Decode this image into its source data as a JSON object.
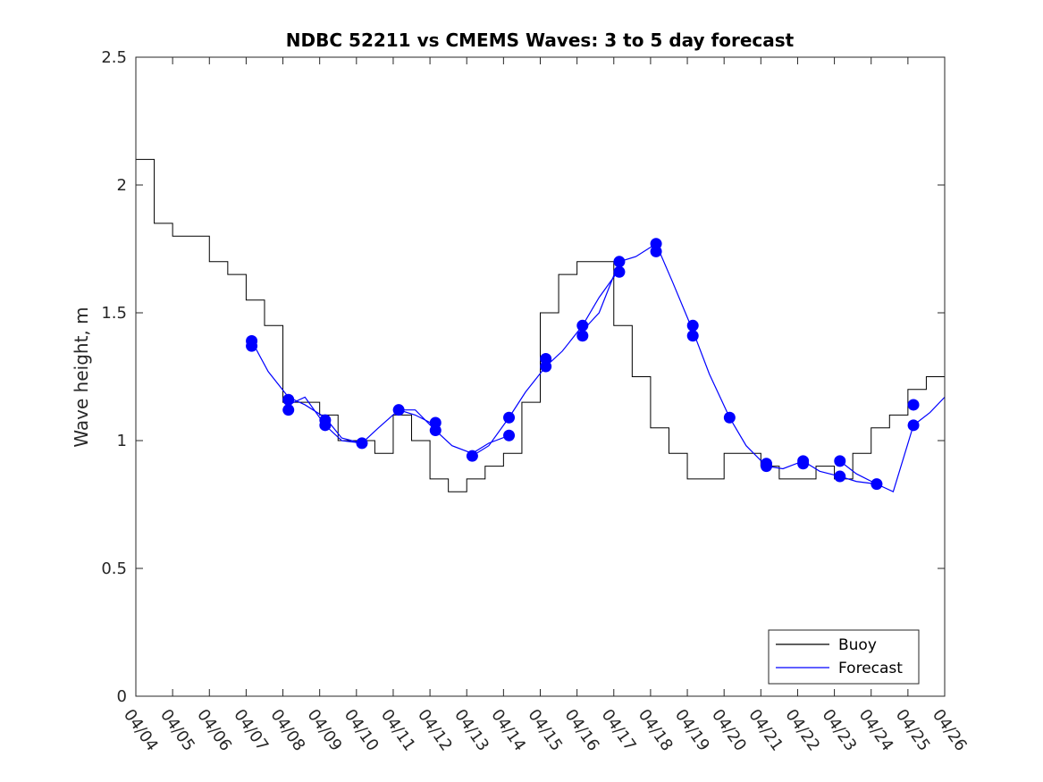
{
  "chart_data": {
    "type": "line",
    "title": "NDBC 52211 vs CMEMS Waves: 3 to 5 day forecast",
    "xlabel": "",
    "ylabel": "Wave height, m",
    "xlim": [
      0,
      22
    ],
    "ylim": [
      0,
      2.5
    ],
    "yticks": [
      0,
      0.5,
      1,
      1.5,
      2,
      2.5
    ],
    "ytick_labels": [
      "0",
      "0.5",
      "1",
      "1.5",
      "2",
      "2.5"
    ],
    "xtick_labels": [
      "04/04",
      "04/05",
      "04/06",
      "04/07",
      "04/08",
      "04/09",
      "04/10",
      "04/11",
      "04/12",
      "04/13",
      "04/14",
      "04/15",
      "04/16",
      "04/17",
      "04/18",
      "04/19",
      "04/20",
      "04/21",
      "04/22",
      "04/23",
      "04/24",
      "04/25",
      "04/26"
    ],
    "legend": {
      "position": "bottom-right",
      "entries": [
        "Buoy",
        "Forecast"
      ]
    },
    "colors": {
      "buoy": "#000000",
      "forecast": "#0000ff"
    },
    "series": [
      {
        "name": "Buoy",
        "x": [
          0,
          0.5,
          1,
          1.5,
          2,
          2.5,
          3,
          3.5,
          4,
          4.5,
          5,
          5.5,
          6,
          6.5,
          7,
          7.5,
          8,
          8.5,
          9,
          9.5,
          10,
          10.5,
          11,
          11.5,
          12,
          12.5,
          13,
          13.5,
          14,
          14.5,
          15,
          15.5,
          16,
          16.5,
          17,
          17.5,
          18,
          18.5,
          19,
          19.5,
          20,
          20.5,
          21,
          21.5,
          22
        ],
        "values": [
          2.1,
          1.85,
          1.8,
          1.8,
          1.7,
          1.65,
          1.55,
          1.45,
          1.15,
          1.15,
          1.1,
          1.0,
          1.0,
          0.95,
          1.1,
          1.0,
          0.85,
          0.8,
          0.85,
          0.9,
          0.95,
          1.15,
          1.5,
          1.65,
          1.7,
          1.7,
          1.45,
          1.25,
          1.05,
          0.95,
          0.85,
          0.85,
          0.95,
          0.95,
          0.9,
          0.85,
          0.85,
          0.9,
          0.85,
          0.95,
          1.05,
          1.1,
          1.2,
          1.25,
          1.2
        ]
      },
      {
        "name": "Forecast",
        "runs": [
          {
            "x": [
              3.15,
              3.6,
              4.15,
              4.6,
              5.15,
              5.6,
              6.15
            ],
            "values": [
              1.39,
              1.27,
              1.17,
              1.14,
              1.09,
              1.01,
              0.99
            ]
          },
          {
            "x": [
              4.15,
              4.6,
              5.15,
              5.6,
              6.15,
              6.6,
              7.15,
              7.6,
              8.15
            ],
            "values": [
              1.14,
              1.17,
              1.06,
              1.0,
              0.99,
              1.05,
              1.12,
              1.1,
              1.06
            ]
          },
          {
            "x": [
              7.15,
              7.6,
              8.15,
              8.6,
              9.15,
              9.6,
              10.15
            ],
            "values": [
              1.12,
              1.12,
              1.04,
              0.98,
              0.95,
              0.99,
              1.02
            ]
          },
          {
            "x": [
              9.15,
              9.6,
              10.15,
              10.6,
              11.15,
              11.6,
              12.15,
              12.6,
              13.15
            ],
            "values": [
              0.94,
              0.98,
              1.09,
              1.19,
              1.29,
              1.35,
              1.45,
              1.56,
              1.67
            ]
          },
          {
            "x": [
              12.15,
              12.6,
              13.15,
              13.6,
              14.15,
              14.6,
              15.15,
              15.6,
              16.15
            ],
            "values": [
              1.43,
              1.5,
              1.7,
              1.72,
              1.77,
              1.62,
              1.43,
              1.26,
              1.09
            ]
          },
          {
            "x": [
              16.15,
              16.6,
              17.15,
              17.6,
              18.15,
              18.6,
              19.15,
              19.6,
              20.15
            ],
            "values": [
              1.09,
              0.98,
              0.9,
              0.89,
              0.92,
              0.88,
              0.86,
              0.84,
              0.83
            ]
          },
          {
            "x": [
              19.15,
              19.6,
              20.15,
              20.6,
              21.15,
              21.6,
              22.0
            ],
            "values": [
              0.92,
              0.87,
              0.83,
              0.8,
              1.06,
              1.11,
              1.17
            ]
          }
        ],
        "markers": {
          "x": [
            3.15,
            3.15,
            4.15,
            4.15,
            5.15,
            5.15,
            6.15,
            7.15,
            8.15,
            8.15,
            9.15,
            10.15,
            10.15,
            11.15,
            11.15,
            12.15,
            12.15,
            13.15,
            13.15,
            14.15,
            14.15,
            15.15,
            15.15,
            16.15,
            17.15,
            17.15,
            18.15,
            18.15,
            19.15,
            19.15,
            20.15,
            21.15,
            21.15
          ],
          "values": [
            1.39,
            1.37,
            1.16,
            1.12,
            1.08,
            1.06,
            0.99,
            1.12,
            1.07,
            1.04,
            0.94,
            1.09,
            1.02,
            1.32,
            1.29,
            1.45,
            1.41,
            1.7,
            1.66,
            1.77,
            1.74,
            1.45,
            1.41,
            1.09,
            0.91,
            0.9,
            0.92,
            0.91,
            0.92,
            0.86,
            0.83,
            1.14,
            1.06
          ]
        }
      }
    ]
  }
}
